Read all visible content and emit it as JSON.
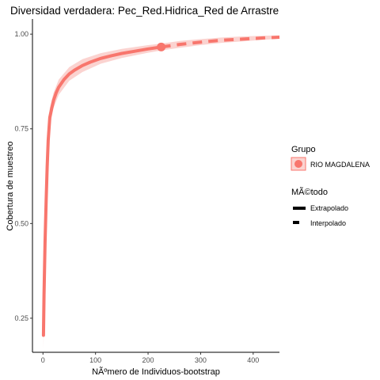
{
  "chart_data": {
    "type": "line",
    "title": "Diversidad verdadera: Pec_Red.Hidrica_Red de Arrastre",
    "xlabel": "NÃºmero de Individuos-bootstrap",
    "ylabel": "Cobertura de muestreo",
    "xlim": [
      -20,
      450
    ],
    "ylim": [
      0.16,
      1.04
    ],
    "x_ticks": [
      0,
      100,
      200,
      300,
      400
    ],
    "y_ticks": [
      0.25,
      0.5,
      0.75,
      1.0
    ],
    "x_tick_labels": [
      "0",
      "100",
      "200",
      "300",
      "400"
    ],
    "y_tick_labels": [
      "0.25",
      "0.50",
      "0.75",
      "1.00"
    ],
    "grid": false,
    "color": "#F8766D",
    "band_color": "#FBD3D0",
    "series": [
      {
        "name": "Extrapolado",
        "style": "solid",
        "x": [
          1,
          2,
          4,
          6,
          8,
          10,
          13,
          16,
          20,
          25,
          30,
          40,
          50,
          60,
          75,
          90,
          110,
          130,
          150,
          175,
          200,
          225
        ],
        "y": [
          0.205,
          0.31,
          0.45,
          0.56,
          0.65,
          0.72,
          0.78,
          0.8,
          0.825,
          0.845,
          0.86,
          0.88,
          0.895,
          0.905,
          0.917,
          0.926,
          0.936,
          0.943,
          0.949,
          0.955,
          0.961,
          0.966
        ]
      },
      {
        "name": "Interpolado",
        "style": "dashed",
        "x": [
          225,
          260,
          300,
          340,
          380,
          420,
          450
        ],
        "y": [
          0.966,
          0.973,
          0.979,
          0.984,
          0.987,
          0.99,
          0.992
        ]
      }
    ],
    "band": {
      "x": [
        1,
        4,
        8,
        13,
        20,
        30,
        50,
        75,
        110,
        150,
        200,
        225,
        260,
        300,
        340,
        380,
        420,
        450
      ],
      "lower": [
        0.17,
        0.42,
        0.62,
        0.755,
        0.805,
        0.84,
        0.877,
        0.9,
        0.922,
        0.937,
        0.951,
        0.957,
        0.964,
        0.971,
        0.977,
        0.981,
        0.985,
        0.988
      ],
      "upper": [
        0.24,
        0.48,
        0.68,
        0.805,
        0.845,
        0.88,
        0.913,
        0.934,
        0.95,
        0.961,
        0.971,
        0.975,
        0.982,
        0.987,
        0.991,
        0.994,
        0.996,
        0.997
      ]
    },
    "reference_point": {
      "x": 225,
      "y": 0.966
    },
    "legend": {
      "placement": "right",
      "group_title": "Grupo",
      "group_items": [
        "RIO MAGDALENA"
      ],
      "method_title": "MÃ©todo",
      "method_items": [
        "Extrapolado",
        "Interpolado"
      ]
    }
  }
}
